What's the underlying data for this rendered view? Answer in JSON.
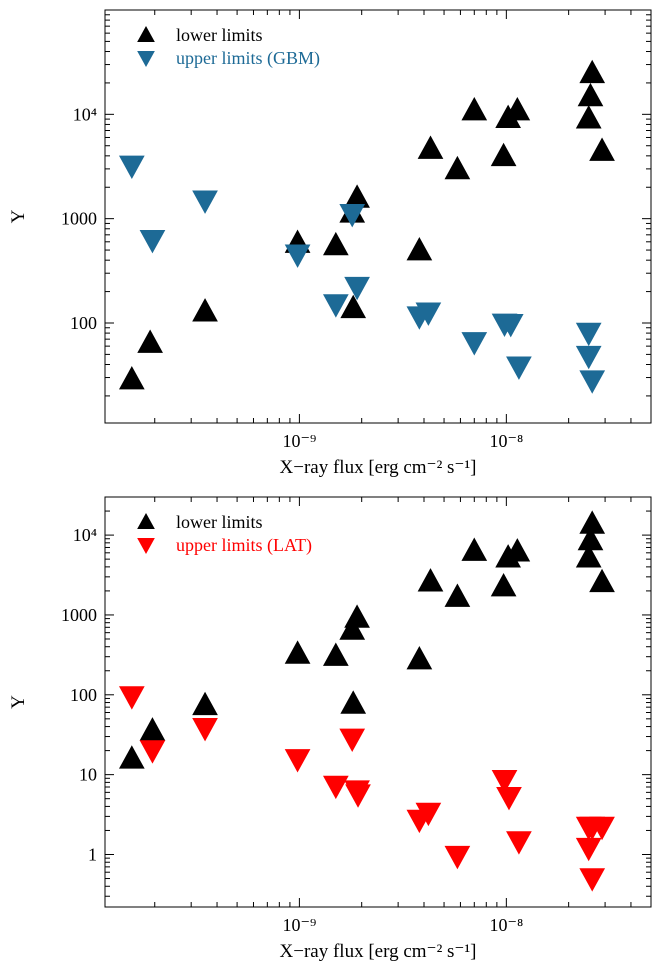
{
  "colors": {
    "lower": "#000000",
    "gbm": "#1d6a96",
    "lat": "#ff0000"
  },
  "chart_data": [
    {
      "type": "scatter",
      "xlabel": "X−ray flux [erg cm⁻² s⁻¹]",
      "ylabel": "Y",
      "x_scale": "log",
      "y_scale": "log",
      "xlim": [
        1.15e-10,
        5e-08
      ],
      "ylim": [
        11,
        100000
      ],
      "x_ticks": [
        1e-09,
        1e-08
      ],
      "x_tick_labels": [
        "10⁻⁹",
        "10⁻⁸"
      ],
      "y_ticks": [
        100,
        1000,
        10000
      ],
      "y_tick_labels": [
        "100",
        "1000",
        "10⁴"
      ],
      "grid": false,
      "legend_position": "top-left",
      "series": [
        {
          "name": "lower limits",
          "marker": "triangle-up",
          "color": "#000000",
          "points": [
            [
              1.55e-10,
              29
            ],
            [
              1.9e-10,
              65
            ],
            [
              3.5e-10,
              130
            ],
            [
              9.8e-10,
              590
            ],
            [
              1.5e-09,
              560
            ],
            [
              1.8e-09,
              1150
            ],
            [
              1.82e-09,
              140
            ],
            [
              1.9e-09,
              1600
            ],
            [
              3.8e-09,
              500
            ],
            [
              4.3e-09,
              4700
            ],
            [
              5.8e-09,
              3000
            ],
            [
              7e-09,
              11000
            ],
            [
              9.7e-09,
              4000
            ],
            [
              1.02e-08,
              9300
            ],
            [
              1.13e-08,
              11000
            ],
            [
              2.5e-08,
              9200
            ],
            [
              2.55e-08,
              15000
            ],
            [
              2.6e-08,
              25000
            ],
            [
              2.9e-08,
              4500
            ]
          ]
        },
        {
          "name": "upper limits (GBM)",
          "marker": "triangle-down",
          "color": "#1d6a96",
          "points": [
            [
              1.55e-10,
              3200
            ],
            [
              1.95e-10,
              620
            ],
            [
              3.5e-10,
              1480
            ],
            [
              9.8e-10,
              450
            ],
            [
              1.5e-09,
              150
            ],
            [
              1.8e-09,
              1100
            ],
            [
              1.9e-09,
              220
            ],
            [
              3.8e-09,
              115
            ],
            [
              4.2e-09,
              125
            ],
            [
              7e-09,
              65
            ],
            [
              9.8e-09,
              98
            ],
            [
              1.05e-08,
              97
            ],
            [
              1.15e-08,
              38
            ],
            [
              2.5e-08,
              80
            ],
            [
              2.5e-08,
              48
            ],
            [
              2.6e-08,
              28
            ]
          ]
        }
      ]
    },
    {
      "type": "scatter",
      "xlabel": "X−ray flux [erg cm⁻² s⁻¹]",
      "ylabel": "Y",
      "x_scale": "log",
      "y_scale": "log",
      "xlim": [
        1.15e-10,
        5e-08
      ],
      "ylim": [
        0.22,
        30000
      ],
      "x_ticks": [
        1e-09,
        1e-08
      ],
      "x_tick_labels": [
        "10⁻⁹",
        "10⁻⁸"
      ],
      "y_ticks": [
        1,
        10,
        100,
        1000,
        10000
      ],
      "y_tick_labels": [
        "1",
        "10",
        "100",
        "1000",
        "10⁴"
      ],
      "grid": false,
      "legend_position": "top-left",
      "series": [
        {
          "name": "lower limits",
          "marker": "triangle-up",
          "color": "#000000",
          "points": [
            [
              1.55e-10,
              16
            ],
            [
              1.95e-10,
              36
            ],
            [
              3.5e-10,
              75
            ],
            [
              9.8e-10,
              330
            ],
            [
              1.5e-09,
              310
            ],
            [
              1.8e-09,
              660
            ],
            [
              1.82e-09,
              78
            ],
            [
              1.9e-09,
              930
            ],
            [
              3.8e-09,
              280
            ],
            [
              4.3e-09,
              2650
            ],
            [
              5.8e-09,
              1700
            ],
            [
              7e-09,
              6400
            ],
            [
              9.7e-09,
              2300
            ],
            [
              1.02e-08,
              5300
            ],
            [
              1.13e-08,
              6300
            ],
            [
              2.5e-08,
              5300
            ],
            [
              2.55e-08,
              8700
            ],
            [
              2.6e-08,
              14000
            ],
            [
              2.9e-08,
              2600
            ]
          ]
        },
        {
          "name": "upper limits (LAT)",
          "marker": "triangle-down",
          "color": "#ff0000",
          "points": [
            [
              1.55e-10,
              95
            ],
            [
              1.95e-10,
              20
            ],
            [
              3.5e-10,
              38
            ],
            [
              9.8e-10,
              15.5
            ],
            [
              1.5e-09,
              7.2
            ],
            [
              1.8e-09,
              28
            ],
            [
              1.9e-09,
              6.3
            ],
            [
              1.92e-09,
              5.6
            ],
            [
              3.8e-09,
              2.7
            ],
            [
              4.2e-09,
              3.3
            ],
            [
              5.8e-09,
              0.95
            ],
            [
              9.8e-09,
              8.5
            ],
            [
              1.03e-08,
              5.2
            ],
            [
              1.15e-08,
              1.45
            ],
            [
              2.5e-08,
              2.2
            ],
            [
              2.5e-08,
              1.2
            ],
            [
              2.6e-08,
              0.5
            ],
            [
              2.9e-08,
              2.2
            ],
            [
              2.6e-08,
              2.2
            ]
          ]
        }
      ]
    }
  ]
}
